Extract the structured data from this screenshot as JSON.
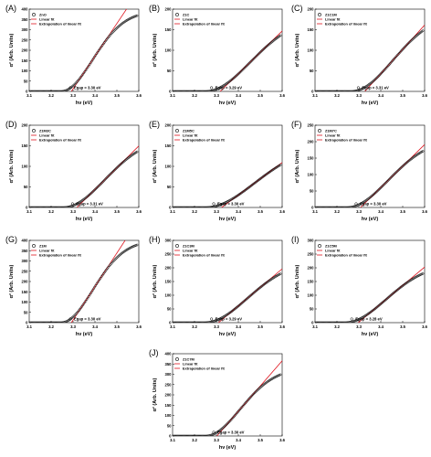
{
  "chart_data": [
    {
      "panel": "(A)",
      "type": "scatter",
      "sample": "ZnO",
      "egap_label": "Egap = 3.30 eV",
      "egap": 3.3,
      "onset": 3.245,
      "plateau": 390,
      "steep": 24,
      "ylim": [
        0,
        400
      ],
      "yticks": [
        0,
        50,
        100,
        150,
        200,
        250,
        300,
        350,
        400
      ]
    },
    {
      "panel": "(B)",
      "type": "scatter",
      "sample": "Z1C",
      "egap_label": "Egap = 3.29 eV",
      "egap": 3.29,
      "onset": 3.25,
      "plateau": 180,
      "steep": 12,
      "ylim": [
        0,
        200
      ],
      "yticks": [
        0,
        50,
        100,
        150,
        200
      ]
    },
    {
      "panel": "(C)",
      "type": "scatter",
      "sample": "Z1C1M",
      "egap_label": "Egap = 3.31 eV",
      "egap": 3.31,
      "onset": 3.265,
      "plateau": 190,
      "steep": 14,
      "ylim": [
        0,
        200
      ],
      "yticks": [
        0,
        50,
        100,
        150,
        200
      ]
    },
    {
      "panel": "(D)",
      "type": "scatter",
      "sample": "Z1M3C",
      "egap_label": "Egap = 3.31 eV",
      "egap": 3.31,
      "onset": 3.255,
      "plateau": 170,
      "steep": 14,
      "ylim": [
        0,
        200
      ],
      "yticks": [
        0,
        50,
        100,
        150,
        200
      ]
    },
    {
      "panel": "(E)",
      "type": "scatter",
      "sample": "Z1M5C",
      "egap_label": "Egap = 3.30 eV",
      "egap": 3.3,
      "onset": 3.25,
      "plateau": 150,
      "steep": 10,
      "ylim": [
        0,
        200
      ],
      "yticks": [
        0,
        50,
        100,
        150,
        200
      ]
    },
    {
      "panel": "(F)",
      "type": "scatter",
      "sample": "Z1M7C",
      "egap_label": "Egap = 3.30 eV",
      "egap": 3.3,
      "onset": 3.245,
      "plateau": 210,
      "steep": 14,
      "ylim": [
        0,
        250
      ],
      "yticks": [
        0,
        50,
        100,
        150,
        200,
        250
      ]
    },
    {
      "panel": "(G)",
      "type": "scatter",
      "sample": "Z1M",
      "egap_label": "Egap = 3.30 eV",
      "egap": 3.3,
      "onset": 3.245,
      "plateau": 400,
      "steep": 24,
      "ylim": [
        0,
        400
      ],
      "yticks": [
        0,
        50,
        100,
        150,
        200,
        250,
        300,
        350,
        400
      ]
    },
    {
      "panel": "(H)",
      "type": "scatter",
      "sample": "Z1C3M",
      "egap_label": "Egap = 3.29 eV",
      "egap": 3.29,
      "onset": 3.245,
      "plateau": 225,
      "steep": 13,
      "ylim": [
        0,
        300
      ],
      "yticks": [
        0,
        50,
        100,
        150,
        200,
        250,
        300
      ]
    },
    {
      "panel": "(I)",
      "type": "scatter",
      "sample": "Z1C5M",
      "egap_label": "Egap = 3.28 eV",
      "egap": 3.28,
      "onset": 3.235,
      "plateau": 215,
      "steep": 14,
      "ylim": [
        0,
        300
      ],
      "yticks": [
        0,
        50,
        100,
        150,
        200,
        250,
        300
      ]
    },
    {
      "panel": "(J)",
      "type": "scatter",
      "sample": "Z1C7M",
      "egap_label": "Egap = 3.30 eV",
      "egap": 3.3,
      "onset": 3.25,
      "plateau": 330,
      "steep": 20,
      "ylim": [
        0,
        400
      ],
      "yticks": [
        0,
        50,
        100,
        150,
        200,
        250,
        300,
        350,
        400
      ]
    }
  ],
  "shared": {
    "ylabel": "α² (Arb. Units)",
    "xlabel": "hν (eV)",
    "xlim": [
      3.1,
      3.6
    ],
    "xticks": [
      "3.1",
      "3.2",
      "3.3",
      "3.4",
      "3.5",
      "3.6"
    ],
    "legend": {
      "fit": "Linear fit",
      "extrapolation": "Extrapolation of linear fit"
    },
    "colors": {
      "data": "#000000",
      "fit": "#e0141e",
      "axis": "#000000"
    }
  }
}
